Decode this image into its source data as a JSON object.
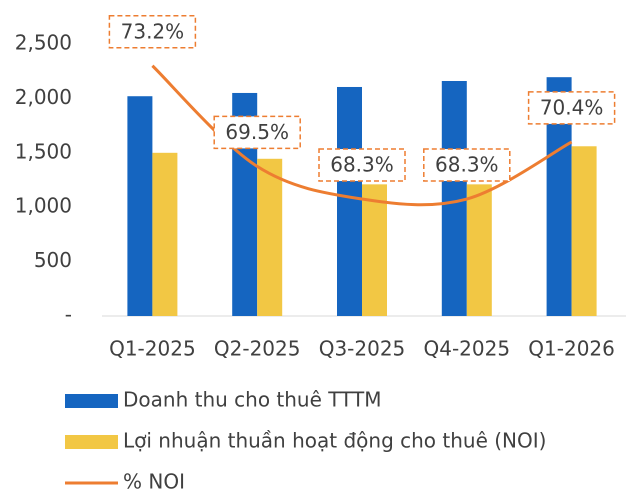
{
  "chart_data": {
    "type": "bar",
    "categories": [
      "Q1-2025",
      "Q2-2025",
      "Q3-2025",
      "Q4-2025",
      "Q1-2026"
    ],
    "series": [
      {
        "name": "Doanh thu cho thuê TTTM",
        "color": "#1565c0",
        "values": [
          2020,
          2050,
          2105,
          2160,
          2195
        ]
      },
      {
        "name": "Lợi nhuận thuần hoạt động cho thuê (NOI)",
        "color": "#f2c744",
        "values": [
          1500,
          1445,
          1210,
          1210,
          1560
        ]
      },
      {
        "name": "% NOI",
        "type": "line",
        "axis": "y2",
        "color": "#ed7d31",
        "values": [
          73.2,
          69.5,
          68.3,
          68.3,
          70.4
        ],
        "value_labels": [
          "73.2%",
          "69.5%",
          "68.3%",
          "68.3%",
          "70.4%"
        ]
      }
    ],
    "ylim": [
      0,
      2500
    ],
    "yticks": [
      {
        "value": 0,
        "label": "-"
      },
      {
        "value": 500,
        "label": "500"
      },
      {
        "value": 1000,
        "label": "1,000"
      },
      {
        "value": 1500,
        "label": "1,500"
      },
      {
        "value": 2000,
        "label": "2,000"
      },
      {
        "value": 2500,
        "label": "2,500"
      }
    ],
    "y2lim": [
      64,
      74
    ],
    "legend": "bottom"
  }
}
